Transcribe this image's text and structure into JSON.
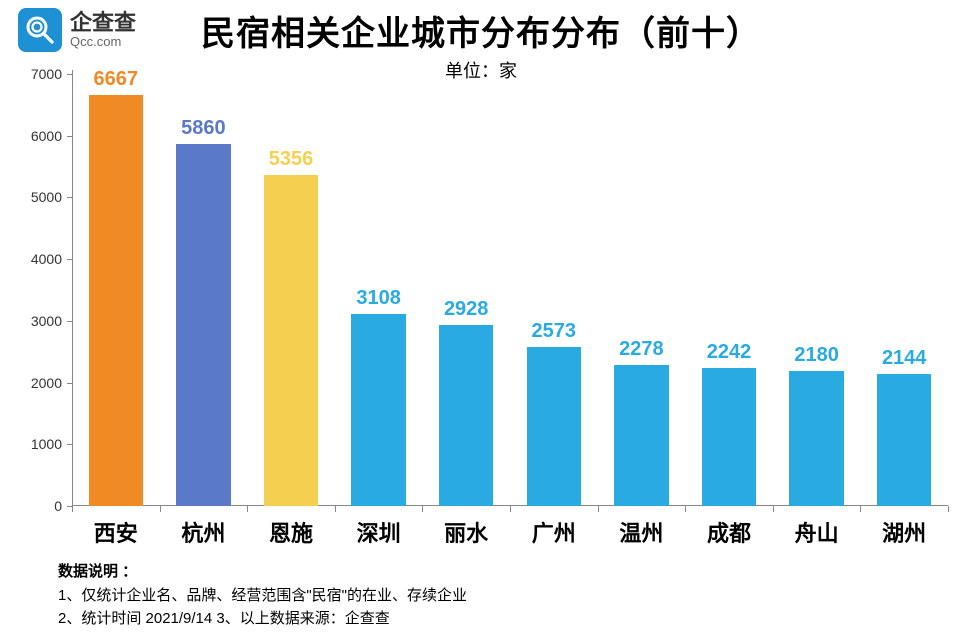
{
  "logo": {
    "cn": "企查查",
    "en": "Qcc.com",
    "icon_bg": "#1e90d4"
  },
  "title": "民宿相关企业城市分布分布（前十）",
  "subtitle": "单位：家",
  "chart": {
    "type": "bar",
    "ylim": [
      0,
      7000
    ],
    "ytick_step": 1000,
    "bar_width_ratio": 0.62,
    "value_label_fontsize": 20,
    "value_label_weight": "bold",
    "x_label_fontsize": 22,
    "axis_color": "#888888",
    "background_color": "#ffffff",
    "categories": [
      "西安",
      "杭州",
      "恩施",
      "深圳",
      "丽水",
      "广州",
      "温州",
      "成都",
      "舟山",
      "湖州"
    ],
    "values": [
      6667,
      5860,
      5356,
      3108,
      2928,
      2573,
      2278,
      2242,
      2180,
      2144
    ],
    "bar_colors": [
      "#f08a24",
      "#5b79c9",
      "#f5cf4f",
      "#29abe2",
      "#29abe2",
      "#29abe2",
      "#29abe2",
      "#29abe2",
      "#29abe2",
      "#29abe2"
    ],
    "value_label_colors": [
      "#f08a24",
      "#5b79c9",
      "#f5cf4f",
      "#29abe2",
      "#29abe2",
      "#29abe2",
      "#29abe2",
      "#29abe2",
      "#29abe2",
      "#29abe2"
    ]
  },
  "notes": {
    "heading": "数据说明 ：",
    "line1": "1、仅统计企业名、品牌、经营范围含\"民宿\"的在业、存续企业",
    "line2": "2、统计时间  2021/9/14      3、以上数据来源：企查查"
  }
}
